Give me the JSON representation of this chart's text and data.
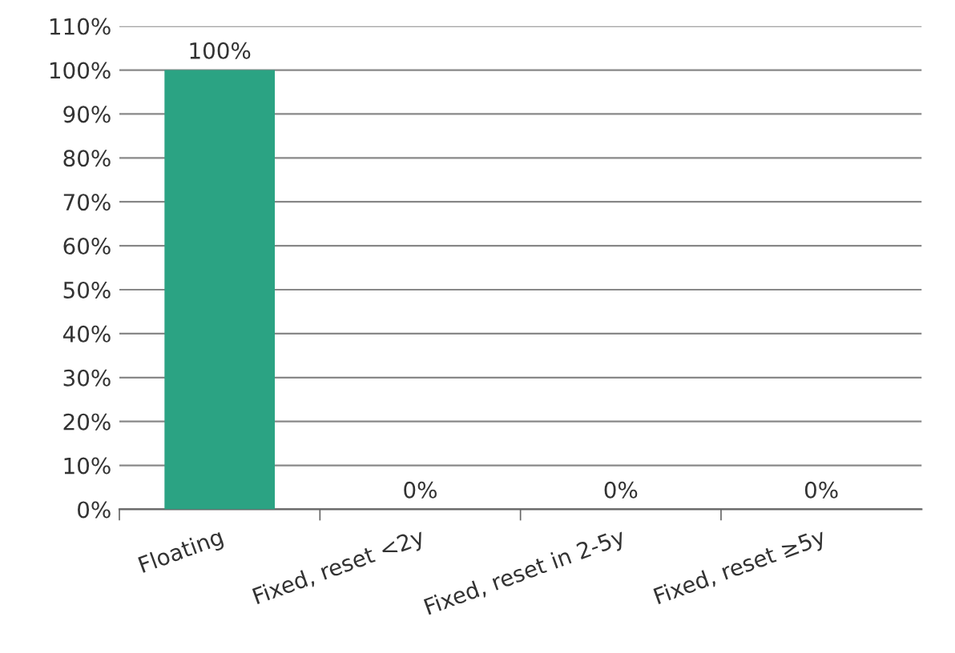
{
  "chart_data": {
    "type": "bar",
    "categories": [
      "Floating",
      "Fixed, reset <2y",
      "Fixed, reset in 2-5y",
      "Fixed, reset ≥5y"
    ],
    "values": [
      100,
      0,
      0,
      0
    ],
    "value_labels": [
      "100%",
      "0%",
      "0%",
      "0%"
    ],
    "color": "#2ba383",
    "ylim": [
      0,
      110
    ],
    "yticks": [
      {
        "value": 0,
        "label": "0%"
      },
      {
        "value": 10,
        "label": "10%"
      },
      {
        "value": 20,
        "label": "20%"
      },
      {
        "value": 30,
        "label": "30%"
      },
      {
        "value": 40,
        "label": "40%"
      },
      {
        "value": 50,
        "label": "50%"
      },
      {
        "value": 60,
        "label": "60%"
      },
      {
        "value": 70,
        "label": "70%"
      },
      {
        "value": 80,
        "label": "80%"
      },
      {
        "value": 90,
        "label": "90%"
      },
      {
        "value": 100,
        "label": "100%"
      },
      {
        "value": 110,
        "label": "110%"
      }
    ],
    "grid": "y",
    "legend": false
  }
}
